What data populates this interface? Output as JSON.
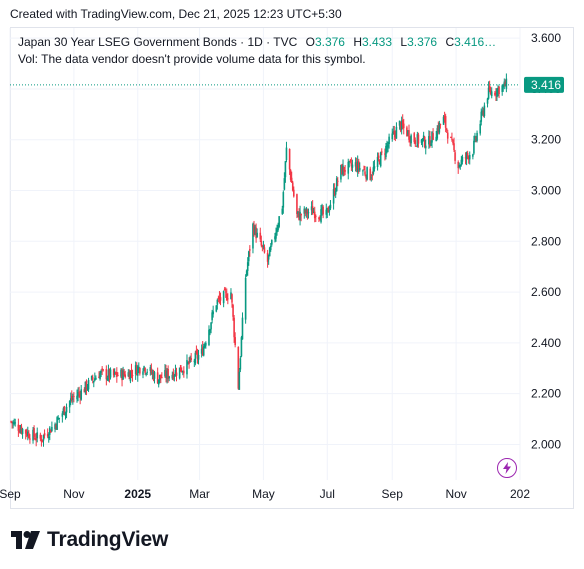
{
  "header": {
    "created_text": "Created with TradingView.com, Dec 21, 2025 12:23 UTC+5:30"
  },
  "legend": {
    "symbol_line": "Japan 30 Year LSEG Government Bonds · 1D · TVC",
    "o_label": "O",
    "o_value": "3.376",
    "h_label": "H",
    "h_value": "3.433",
    "l_label": "L",
    "l_value": "3.376",
    "c_label": "C",
    "c_value": "3.416…",
    "volume_note": "Vol: The data vendor doesn't provide volume data for this symbol."
  },
  "last_price_label": "3.416",
  "brand": {
    "name": "TradingView"
  },
  "colors": {
    "up": "#089981",
    "down": "#f23645",
    "grid": "#f0f3fa",
    "badge": "#089981",
    "bolt": "#9c27b0"
  },
  "icons": {
    "logo": "tradingview-logo-icon",
    "bolt": "lightning-bolt-icon"
  },
  "chart_data": {
    "type": "candlestick",
    "title": "Japan 30 Year LSEG Government Bonds",
    "interval": "1D",
    "y_ticks": [
      "3.600",
      "3.400",
      "3.200",
      "3.000",
      "2.800",
      "2.600",
      "2.400",
      "2.200",
      "2.000"
    ],
    "y_tick_values": [
      3.6,
      3.4,
      3.2,
      3.0,
      2.8,
      2.6,
      2.4,
      2.2,
      2.0
    ],
    "x_ticks": [
      "Sep",
      "Nov",
      "2025",
      "Mar",
      "May",
      "Jul",
      "Sep",
      "Nov",
      "202"
    ],
    "x_tick_dates": [
      "2024-09-01",
      "2024-11-01",
      "2025-01-01",
      "2025-03-01",
      "2025-05-01",
      "2025-07-01",
      "2025-09-01",
      "2025-11-01",
      "2026-01-01"
    ],
    "bold_ticks": [
      "2025"
    ],
    "ylim": [
      1.86,
      3.64
    ],
    "xlim": [
      "2024-09-01",
      "2026-01-01"
    ],
    "last_value": 3.416,
    "last_date": "2025-12-19",
    "series": [
      {
        "date": "2024-09-02",
        "value": 2.09
      },
      {
        "date": "2024-09-16",
        "value": 2.05
      },
      {
        "date": "2024-09-30",
        "value": 2.02
      },
      {
        "date": "2024-10-14",
        "value": 2.08
      },
      {
        "date": "2024-10-28",
        "value": 2.17
      },
      {
        "date": "2024-11-11",
        "value": 2.22
      },
      {
        "date": "2024-11-25",
        "value": 2.28
      },
      {
        "date": "2024-12-09",
        "value": 2.27
      },
      {
        "date": "2024-12-23",
        "value": 2.28
      },
      {
        "date": "2025-01-06",
        "value": 2.31
      },
      {
        "date": "2025-01-20",
        "value": 2.26
      },
      {
        "date": "2025-02-03",
        "value": 2.28
      },
      {
        "date": "2025-02-17",
        "value": 2.31
      },
      {
        "date": "2025-03-03",
        "value": 2.36
      },
      {
        "date": "2025-03-17",
        "value": 2.56
      },
      {
        "date": "2025-03-31",
        "value": 2.6
      },
      {
        "date": "2025-04-07",
        "value": 2.23
      },
      {
        "date": "2025-04-14",
        "value": 2.66
      },
      {
        "date": "2025-04-21",
        "value": 2.86
      },
      {
        "date": "2025-05-05",
        "value": 2.72
      },
      {
        "date": "2025-05-19",
        "value": 2.94
      },
      {
        "date": "2025-05-23",
        "value": 3.16
      },
      {
        "date": "2025-06-02",
        "value": 2.9
      },
      {
        "date": "2025-06-16",
        "value": 2.92
      },
      {
        "date": "2025-06-30",
        "value": 2.9
      },
      {
        "date": "2025-07-14",
        "value": 3.08
      },
      {
        "date": "2025-07-28",
        "value": 3.1
      },
      {
        "date": "2025-08-11",
        "value": 3.06
      },
      {
        "date": "2025-08-25",
        "value": 3.16
      },
      {
        "date": "2025-09-08",
        "value": 3.26
      },
      {
        "date": "2025-09-22",
        "value": 3.2
      },
      {
        "date": "2025-10-06",
        "value": 3.19
      },
      {
        "date": "2025-10-20",
        "value": 3.28
      },
      {
        "date": "2025-11-03",
        "value": 3.1
      },
      {
        "date": "2025-11-17",
        "value": 3.16
      },
      {
        "date": "2025-12-01",
        "value": 3.38
      },
      {
        "date": "2025-12-19",
        "value": 3.416
      }
    ]
  }
}
